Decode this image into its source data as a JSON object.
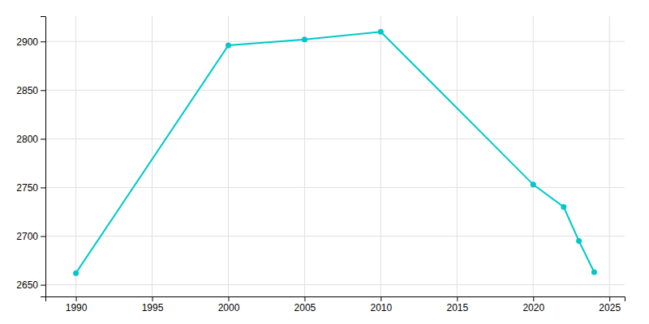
{
  "chart_data": {
    "type": "line",
    "x": [
      1990,
      2000,
      2005,
      2010,
      2020,
      2022,
      2023,
      2024
    ],
    "values": [
      2662,
      2896,
      2902,
      2910,
      2753,
      2730,
      2695,
      2663
    ],
    "color": "#00c8c8",
    "marker": "circle",
    "xlim": [
      1988,
      2026
    ],
    "ylim": [
      2638,
      2926
    ],
    "xticks": [
      1990,
      1995,
      2000,
      2005,
      2010,
      2015,
      2020,
      2025
    ],
    "yticks": [
      2650,
      2700,
      2750,
      2800,
      2850,
      2900
    ],
    "grid": true
  }
}
